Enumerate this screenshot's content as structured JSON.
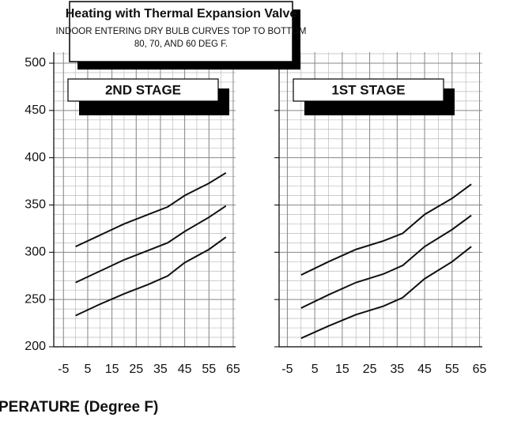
{
  "title": "Heating with Thermal Expansion Valve",
  "subtitle": [
    "INDOOR ENTERING DRY BULB CURVES TOP TO BOTTOM",
    "80, 70, AND 60 DEG F."
  ],
  "x_label": "PERATURE (Degree F)",
  "chart_data": [
    {
      "type": "line",
      "title": "2ND STAGE",
      "grid": true,
      "color": "#111",
      "xlim": [
        -9,
        66
      ],
      "xticks": [
        -5,
        5,
        15,
        25,
        35,
        45,
        55,
        65
      ],
      "ylim": [
        200,
        500
      ],
      "yticks": [
        200,
        250,
        300,
        350,
        400,
        450,
        500
      ],
      "x": [
        0,
        10,
        20,
        30,
        38,
        45,
        55,
        62
      ],
      "series": [
        {
          "values": [
            306,
            318,
            330,
            340,
            348,
            360,
            373,
            384
          ]
        },
        {
          "values": [
            268,
            280,
            292,
            302,
            310,
            322,
            337,
            349
          ]
        },
        {
          "values": [
            233,
            245,
            256,
            266,
            275,
            289,
            303,
            316
          ]
        }
      ]
    },
    {
      "type": "line",
      "title": "1ST STAGE",
      "grid": true,
      "color": "#111",
      "xlim": [
        -8,
        66
      ],
      "xticks": [
        -5,
        5,
        15,
        25,
        35,
        45,
        55,
        65
      ],
      "ylim": [
        200,
        500
      ],
      "x": [
        0,
        10,
        20,
        30,
        37,
        45,
        55,
        62
      ],
      "series": [
        {
          "values": [
            276,
            290,
            303,
            312,
            320,
            340,
            357,
            372
          ]
        },
        {
          "values": [
            241,
            255,
            268,
            277,
            286,
            306,
            324,
            339
          ]
        },
        {
          "values": [
            209,
            222,
            234,
            243,
            252,
            272,
            290,
            306
          ]
        }
      ]
    }
  ]
}
